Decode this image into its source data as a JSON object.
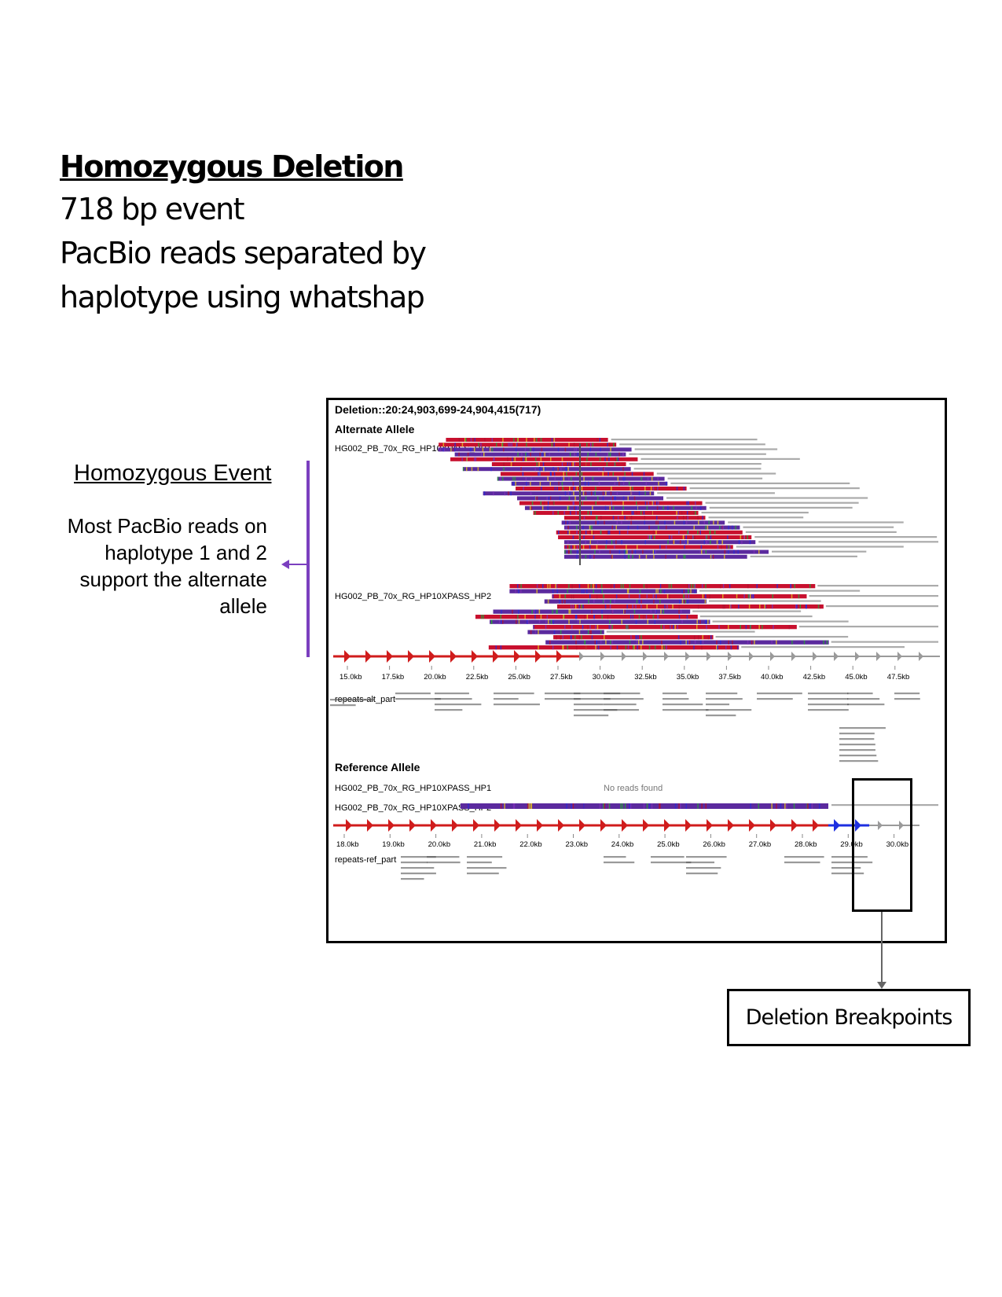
{
  "header": {
    "title": "Homozygous Deletion",
    "lines": [
      "718 bp event",
      "PacBio reads separated by",
      "haplotype using whatshap"
    ]
  },
  "annotation": {
    "event_label": "Homozygous Event",
    "description": "Most PacBio reads on haplotype 1 and 2 support the alternate allele"
  },
  "viewer": {
    "locus_title": "Deletion::20:24,903,699-24,904,415(717)",
    "alt_section": "Alternate Allele",
    "alt_hp1": "HG002_PB_70x_RG_HP10XPASS_HP1",
    "alt_hp2": "HG002_PB_70x_RG_HP10XPASS_HP2",
    "alt_axis_ticks": [
      "15.0kb",
      "17.5kb",
      "20.0kb",
      "22.5kb",
      "25.0kb",
      "27.5kb",
      "30.0kb",
      "32.5kb",
      "35.0kb",
      "37.5kb",
      "40.0kb",
      "42.5kb",
      "45.0kb",
      "47.5kb"
    ],
    "alt_repeats_track": "repeats-alt_part",
    "ref_section": "Reference Allele",
    "ref_hp1": "HG002_PB_70x_RG_HP10XPASS_HP1",
    "ref_hp2": "HG002_PB_70x_RG_HP10XPASS_HP2",
    "no_reads": "No reads found",
    "ref_axis_ticks": [
      "18.0kb",
      "19.0kb",
      "20.0kb",
      "21.0kb",
      "22.0kb",
      "23.0kb",
      "24.0kb",
      "25.0kb",
      "26.0kb",
      "27.0kb",
      "28.0kb",
      "29.0kb",
      "30.0kb"
    ],
    "ref_repeats_track": "repeats-ref_part",
    "colors": {
      "read_red": "#c8102e",
      "read_purple": "#5b2a9e",
      "arrow_red": "#d01c1c",
      "arrow_grey": "#9a9a9a",
      "arrow_blue": "#1d2fe0"
    }
  },
  "breakpoints": {
    "label": "Deletion Breakpoints"
  }
}
